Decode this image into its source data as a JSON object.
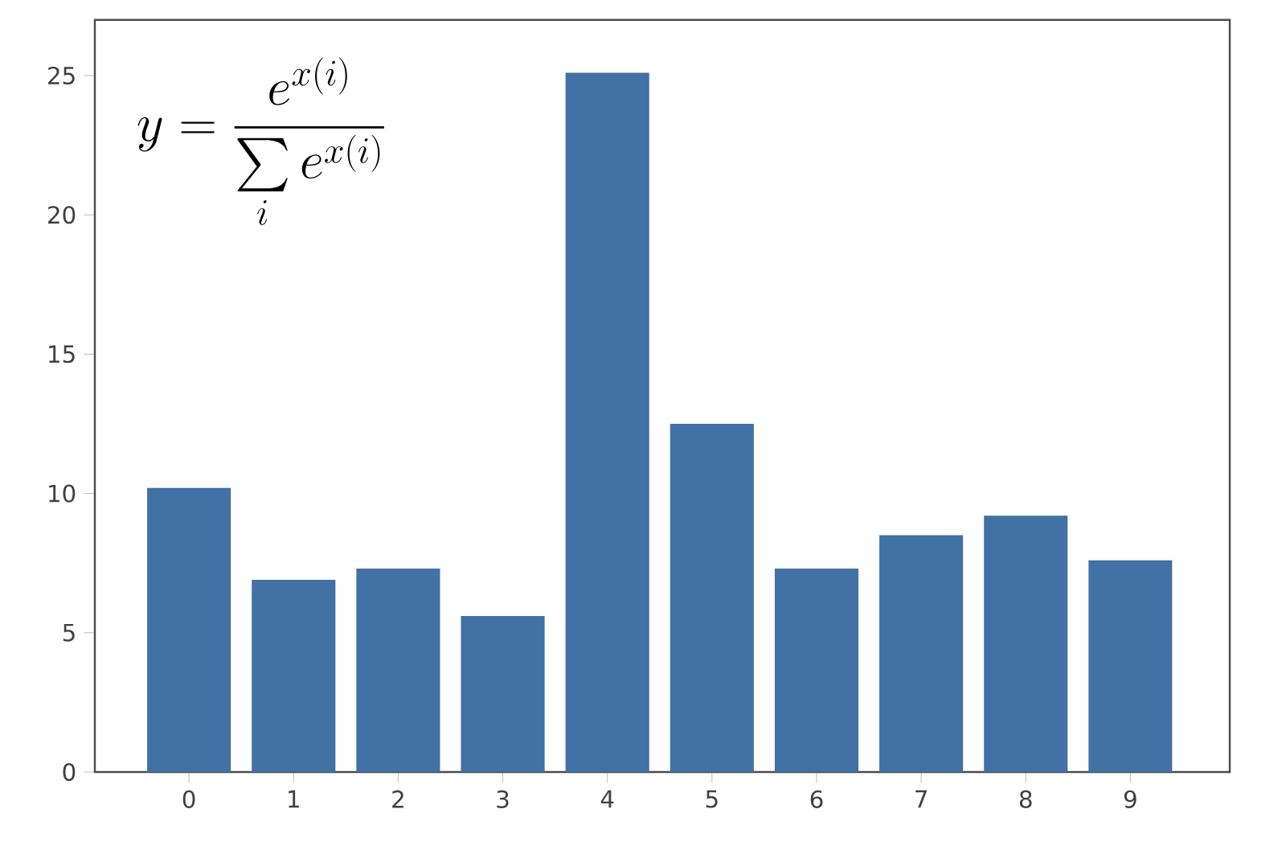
{
  "chart_data": {
    "type": "bar",
    "categories": [
      "0",
      "1",
      "2",
      "3",
      "4",
      "5",
      "6",
      "7",
      "8",
      "9"
    ],
    "values": [
      10.2,
      6.9,
      7.3,
      5.6,
      25.1,
      12.5,
      7.3,
      8.5,
      9.2,
      7.6
    ],
    "color": "#4171a5",
    "ylim": [
      0,
      27
    ],
    "yticks": [
      0,
      5,
      10,
      15,
      20,
      25
    ],
    "annotations": [
      "y=\\frac{e^{x(i)}}{\\sum\\limits_{i} e^{x(i)}}"
    ]
  }
}
